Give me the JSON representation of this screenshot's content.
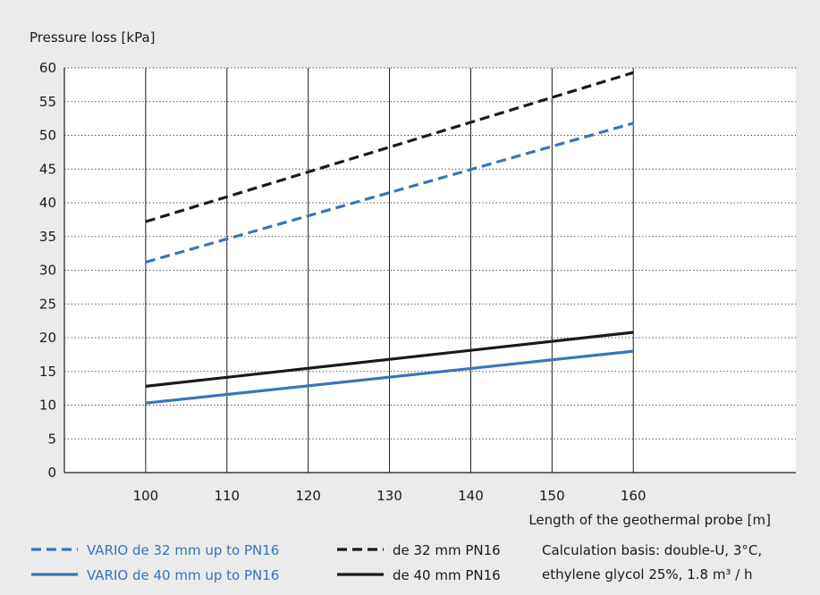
{
  "chart_data": {
    "type": "line",
    "ylabel": "Pressure loss  [kPa]",
    "xlabel": "Length of the geothermal probe  [m]",
    "xlim": [
      90,
      180
    ],
    "ylim": [
      0,
      60
    ],
    "x_ticks": [
      100,
      110,
      120,
      130,
      140,
      150,
      160
    ],
    "y_ticks": [
      0,
      5,
      10,
      15,
      20,
      25,
      30,
      35,
      40,
      45,
      50,
      55,
      60
    ],
    "grid": {
      "vertical": "solid",
      "horizontal": "dotted"
    },
    "series": [
      {
        "name": "VARIO de 32 mm up to PN16",
        "color": "#3a75b8",
        "style": "dashed",
        "x": [
          100,
          160
        ],
        "values": [
          31.2,
          51.8
        ]
      },
      {
        "name": "de 32 mm PN16",
        "color": "#1a1a1a",
        "style": "dashed",
        "x": [
          100,
          160
        ],
        "values": [
          37.2,
          59.3
        ]
      },
      {
        "name": "VARIO de 40 mm up to PN16",
        "color": "#3a75b8",
        "style": "solid",
        "x": [
          100,
          160
        ],
        "values": [
          10.3,
          18.0
        ]
      },
      {
        "name": "de 40 mm PN16",
        "color": "#1a1a1a",
        "style": "solid",
        "x": [
          100,
          160
        ],
        "values": [
          12.8,
          20.8
        ]
      }
    ],
    "legend": {
      "placement": "bottom",
      "note_line1": "Calculation basis: double-U, 3°C,",
      "note_line2": "ethylene glycol 25%, 1.8 m³ / h"
    }
  }
}
